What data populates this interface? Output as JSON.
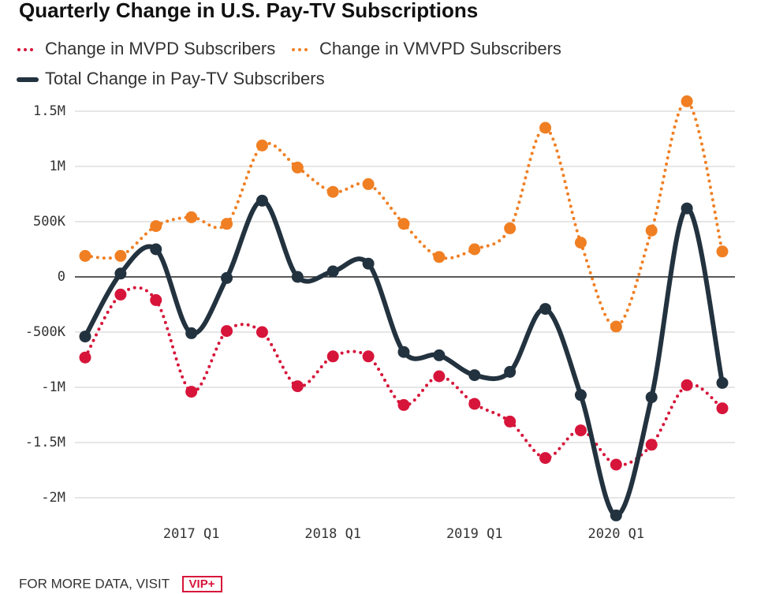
{
  "chart_data": {
    "type": "line",
    "title": "Quarterly Change in U.S. Pay-TV Subscriptions",
    "categories": [
      null,
      null,
      null,
      "2017 Q1",
      null,
      null,
      null,
      "2018 Q1",
      null,
      null,
      null,
      "2019 Q1",
      null,
      null,
      null,
      "2020 Q1",
      null,
      null,
      null
    ],
    "series": [
      {
        "name": "Change in MVPD Subscribers",
        "color": "#d7153a",
        "style": "dotted",
        "values": [
          -730000,
          -160000,
          -210000,
          -1040000,
          -490000,
          -500000,
          -990000,
          -720000,
          -720000,
          -1160000,
          -900000,
          -1150000,
          -1310000,
          -1640000,
          -1390000,
          -1700000,
          -1520000,
          -980000,
          -1190000
        ]
      },
      {
        "name": "Change in VMVPD Subscribers",
        "color": "#f07f23",
        "style": "dotted",
        "values": [
          190000,
          190000,
          460000,
          540000,
          480000,
          1190000,
          990000,
          770000,
          840000,
          480000,
          180000,
          250000,
          440000,
          1350000,
          310000,
          -450000,
          420000,
          1590000,
          230000
        ]
      },
      {
        "name": "Total Change in Pay-TV Subscribers",
        "color": "#23323f",
        "style": "solid",
        "values": [
          -540000,
          30000,
          250000,
          -510000,
          -10000,
          690000,
          0,
          50000,
          120000,
          -680000,
          -710000,
          -890000,
          -860000,
          -290000,
          -1070000,
          -2160000,
          -1090000,
          620000,
          -960000
        ]
      }
    ],
    "ylim": [
      -2200000,
      1600000
    ],
    "yticks": [
      {
        "value": 1500000,
        "label": "1.5M"
      },
      {
        "value": 1000000,
        "label": "1M"
      },
      {
        "value": 500000,
        "label": "500K"
      },
      0,
      {
        "value": -500000,
        "label": "-500K"
      },
      {
        "value": -1000000,
        "label": "-1M"
      },
      {
        "value": -1500000,
        "label": "-1.5M"
      },
      {
        "value": -2000000,
        "label": "-2M"
      }
    ],
    "grid": true
  },
  "footer": {
    "text": "FOR MORE DATA, VISIT",
    "badge": "VIP+"
  }
}
